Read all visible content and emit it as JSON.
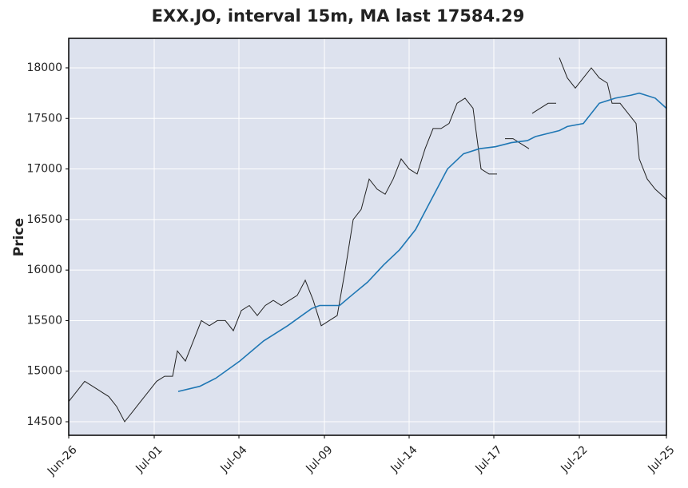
{
  "chart_data": {
    "type": "line",
    "title": "EXX.JO, interval 15m, MA last 17584.29",
    "ylabel": "Price",
    "xlim": [
      0,
      748
    ],
    "xticks": [
      {
        "value": 0,
        "label": "Jun-26"
      },
      {
        "value": 107,
        "label": "Jul-01"
      },
      {
        "value": 213,
        "label": "Jul-04"
      },
      {
        "value": 320,
        "label": "Jul-09"
      },
      {
        "value": 426,
        "label": "Jul-14"
      },
      {
        "value": 532,
        "label": "Jul-17"
      },
      {
        "value": 639,
        "label": "Jul-22"
      },
      {
        "value": 748,
        "label": "Jul-25"
      }
    ],
    "ylim": [
      14366,
      18292
    ],
    "yticks": [
      14500,
      15000,
      15500,
      16000,
      16500,
      17000,
      17500,
      18000
    ],
    "grid": true,
    "series": [
      {
        "color": "#222222",
        "x": [
          0,
          10,
          20,
          30,
          40,
          50,
          60,
          70,
          80,
          90,
          100,
          110,
          120,
          130,
          136,
          146,
          156,
          166,
          176,
          186,
          196,
          206,
          216,
          226,
          236,
          246,
          256,
          266,
          276,
          286,
          296,
          306,
          316,
          326,
          336,
          346,
          356,
          366,
          376,
          386,
          396,
          406,
          416,
          426,
          436,
          446,
          456,
          466,
          476,
          486,
          496,
          506,
          516,
          526,
          536,
          544,
          546,
          556,
          566,
          576,
          578,
          580,
          590,
          600,
          610,
          611,
          614,
          624,
          634,
          644,
          654,
          664,
          674,
          680,
          690,
          700,
          710,
          714,
          724,
          734,
          748
        ],
        "values": [
          14700,
          14800,
          14900,
          14850,
          14800,
          14750,
          14650,
          14500,
          14600,
          14700,
          14800,
          14900,
          14950,
          14950,
          15200,
          15100,
          15300,
          15500,
          15450,
          15500,
          15500,
          15400,
          15600,
          15650,
          15550,
          15650,
          15700,
          15650,
          15700,
          15750,
          15900,
          15700,
          15450,
          15500,
          15550,
          16000,
          16500,
          16600,
          16900,
          16800,
          16750,
          16900,
          17100,
          17000,
          16950,
          17200,
          17400,
          17400,
          17450,
          17650,
          17700,
          17600,
          17000,
          16950,
          16950,
          null,
          17300,
          17300,
          17250,
          17200,
          null,
          17550,
          17600,
          17650,
          17650,
          null,
          18100,
          17900,
          17800,
          17900,
          18000,
          17900,
          17850,
          17650,
          17650,
          17550,
          17450,
          17100,
          16900,
          16800,
          16700
        ]
      },
      {
        "color": "#1f77b4",
        "x": [
          137,
          164,
          184,
          214,
          244,
          274,
          304,
          314,
          339,
          354,
          374,
          394,
          414,
          434,
          454,
          474,
          494,
          514,
          534,
          554,
          574,
          584,
          614,
          624,
          644,
          664,
          684,
          704,
          714,
          734,
          748
        ],
        "values": [
          14800,
          14850,
          14930,
          15100,
          15300,
          15450,
          15620,
          15650,
          15650,
          15750,
          15880,
          16050,
          16200,
          16400,
          16700,
          17000,
          17150,
          17200,
          17220,
          17260,
          17280,
          17320,
          17380,
          17420,
          17450,
          17650,
          17700,
          17730,
          17750,
          17700,
          17600
        ]
      }
    ]
  }
}
